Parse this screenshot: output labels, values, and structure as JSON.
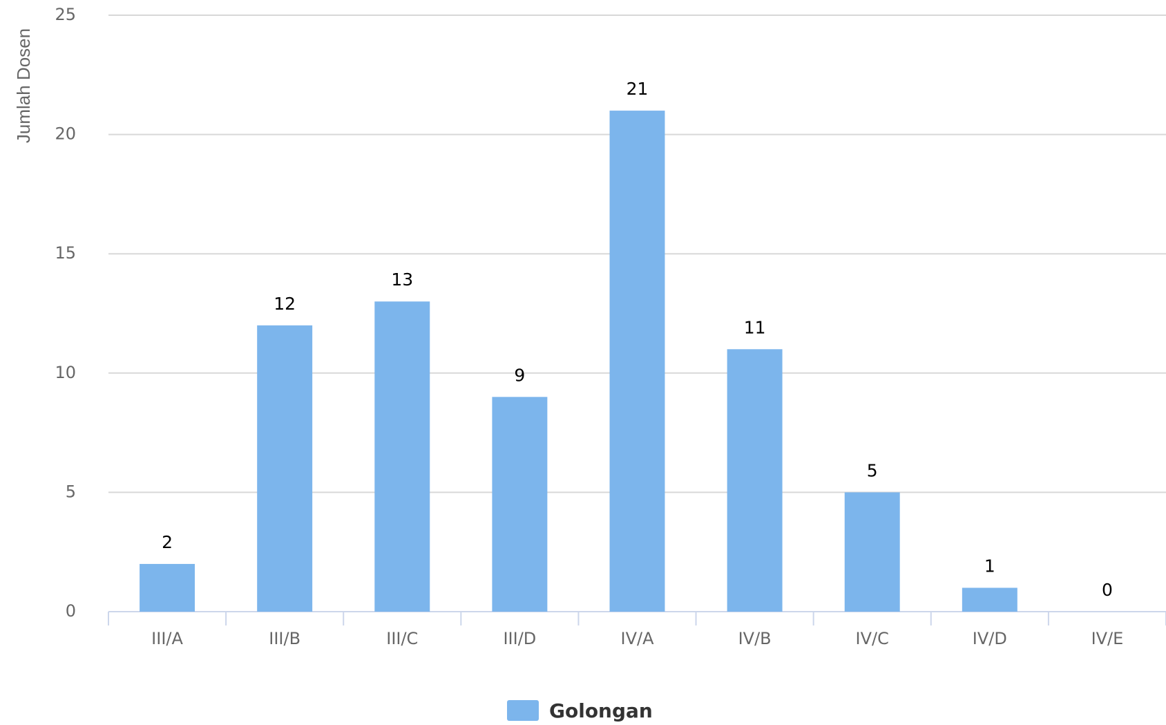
{
  "chart_data": {
    "type": "bar",
    "y_label": "Jumlah Dosen",
    "categories": [
      "III/A",
      "III/B",
      "III/C",
      "III/D",
      "IV/A",
      "IV/B",
      "IV/C",
      "IV/D",
      "IV/E"
    ],
    "series": [
      {
        "name": "Golongan",
        "color": "#7cb5ec",
        "values": [
          2,
          12,
          13,
          9,
          21,
          11,
          5,
          1,
          0
        ]
      }
    ],
    "ylim": [
      0,
      25
    ],
    "yticks": [
      0,
      5,
      10,
      15,
      20,
      25
    ],
    "grid": true,
    "data_labels": true,
    "legend": "bottom"
  }
}
